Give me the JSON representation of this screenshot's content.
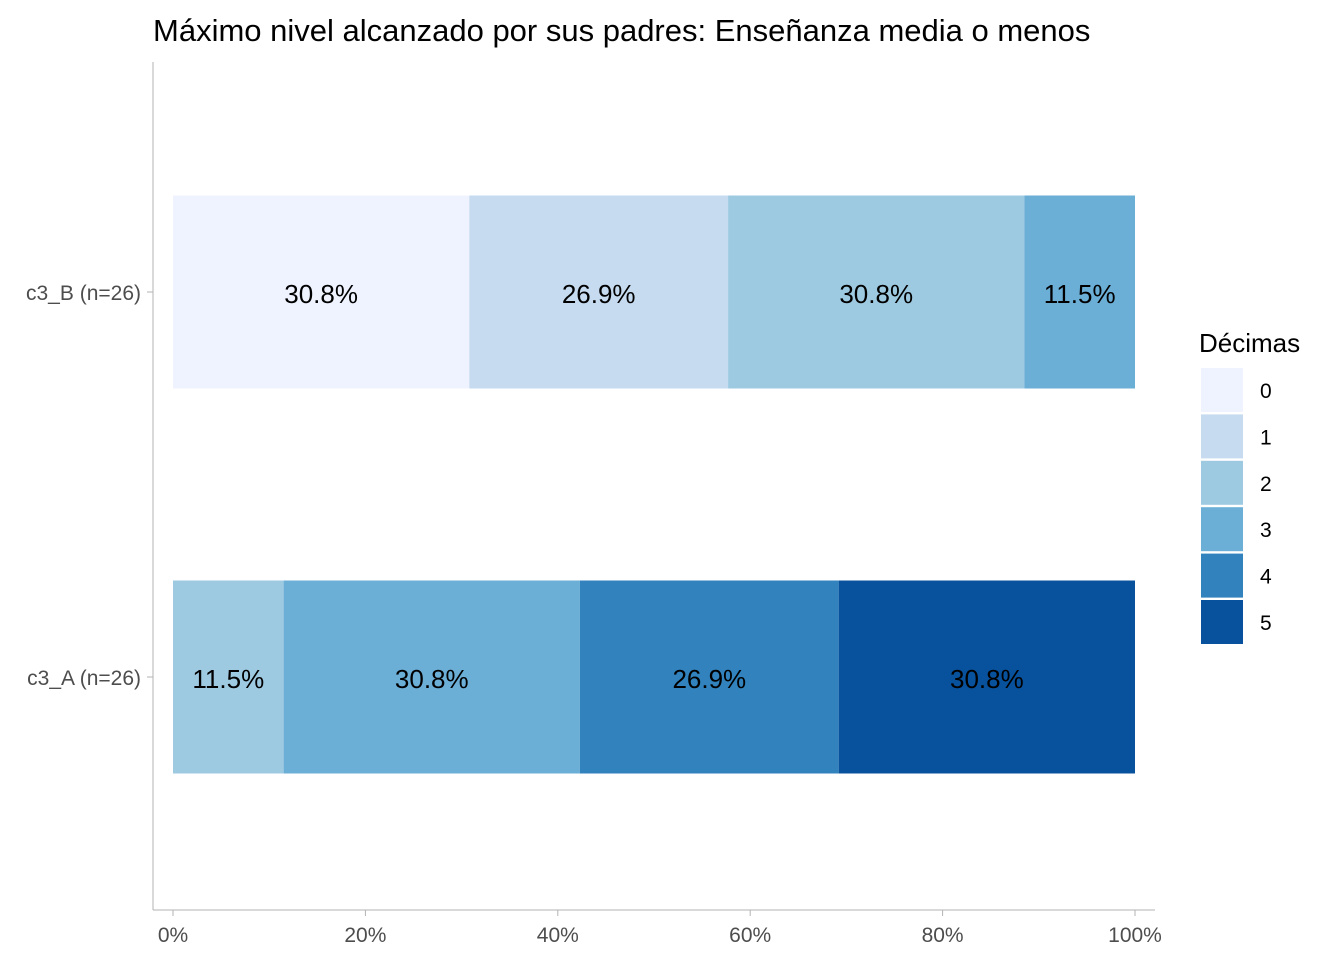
{
  "chart_data": {
    "type": "bar",
    "orientation": "horizontal",
    "stacked": true,
    "title": "Máximo nivel alcanzado por sus padres: Enseñanza media o menos",
    "xlabel": "",
    "ylabel": "",
    "xlim": [
      0,
      100
    ],
    "x_ticks": [
      "0%",
      "20%",
      "40%",
      "60%",
      "80%",
      "100%"
    ],
    "grid": false,
    "categories": [
      "c3_B (n=26)",
      "c3_A (n=26)"
    ],
    "series": [
      {
        "name": "0",
        "color": "#eff3ff",
        "values": [
          30.8,
          0
        ],
        "labels": [
          "30.8%",
          ""
        ]
      },
      {
        "name": "1",
        "color": "#c6dbef",
        "values": [
          26.9,
          0
        ],
        "labels": [
          "26.9%",
          ""
        ]
      },
      {
        "name": "2",
        "color": "#9ecae1",
        "values": [
          30.8,
          11.5
        ],
        "labels": [
          "30.8%",
          "11.5%"
        ]
      },
      {
        "name": "3",
        "color": "#6baed6",
        "values": [
          11.5,
          30.8
        ],
        "labels": [
          "11.5%",
          "30.8%"
        ]
      },
      {
        "name": "4",
        "color": "#3182bd",
        "values": [
          0,
          26.9
        ],
        "labels": [
          "",
          "26.9%"
        ]
      },
      {
        "name": "5",
        "color": "#08519c",
        "values": [
          0,
          30.8
        ],
        "labels": [
          "",
          "30.8%"
        ]
      }
    ],
    "legend": {
      "title": "Décimas",
      "position": "right"
    }
  }
}
